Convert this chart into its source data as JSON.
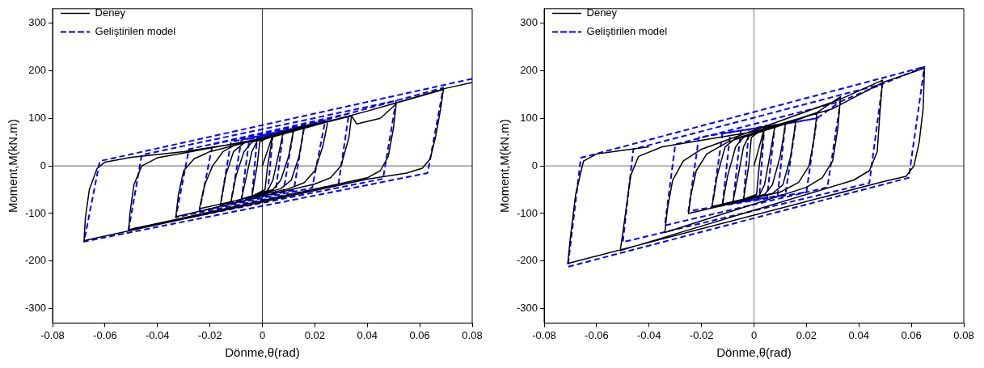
{
  "chart_data": [
    {
      "type": "line",
      "xlabel": "Dönme,θ(rad)",
      "ylabel": "Moment,M(kN.m)",
      "xlim": [
        -0.08,
        0.08
      ],
      "xticks": [
        -0.08,
        -0.06,
        -0.04,
        -0.02,
        0,
        0.02,
        0.04,
        0.06,
        0.08
      ],
      "ylim": [
        -330,
        330
      ],
      "yticks": [
        -300,
        -200,
        -100,
        0,
        100,
        200,
        300
      ],
      "grid": false,
      "legend": "top left",
      "marker": "none",
      "ref_lines": [
        {
          "axis": "x",
          "value": 0,
          "color": "#404040"
        },
        {
          "axis": "y",
          "value": 0,
          "color": "#808080"
        }
      ],
      "series": [
        {
          "name": "Deney",
          "color": "#000000",
          "line_style": "solid",
          "x": [
            0,
            0.004,
            0.002,
            0.001,
            -0.004,
            -0.002,
            -0.001,
            0.004,
            0.008,
            0.006,
            0.004,
            0.002,
            -0.008,
            -0.006,
            -0.004,
            -0.002,
            0.008,
            0.012,
            0.01,
            0.007,
            0.004,
            -0.012,
            -0.01,
            -0.007,
            -0.004,
            0.012,
            0.016,
            0.014,
            0.011,
            0.007,
            -0.016,
            -0.014,
            -0.011,
            -0.007,
            0.016,
            0.025,
            0.023,
            0.02,
            0.016,
            0.01,
            -0.024,
            -0.022,
            -0.019,
            -0.015,
            -0.01,
            0.025,
            0.034,
            0.033,
            0.03,
            0.026,
            0.02,
            -0.033,
            -0.032,
            -0.03,
            -0.026,
            -0.02,
            0.034,
            0.036,
            0.045,
            0.051,
            0.05,
            0.048,
            0.045,
            0.04,
            -0.051,
            -0.0505,
            -0.049,
            -0.046,
            -0.04,
            -0.03,
            0,
            0.04,
            0.069,
            0.068,
            0.066,
            0.064,
            0.061,
            0.055,
            0.04,
            -0.068,
            -0.0675,
            -0.066,
            -0.063,
            -0.06,
            -0.05,
            -0.03,
            0,
            0.04,
            0.07,
            0.08
          ],
          "values": [
            0,
            65,
            0,
            -50,
            -64,
            0,
            50,
            65,
            72,
            20,
            -30,
            -52,
            -70,
            -20,
            30,
            52,
            72,
            78,
            20,
            -30,
            -50,
            -76,
            -20,
            30,
            50,
            78,
            84,
            20,
            -30,
            -48,
            -82,
            -20,
            30,
            48,
            84,
            94,
            40,
            -10,
            -35,
            -48,
            -90,
            -40,
            0,
            30,
            45,
            94,
            105,
            60,
            0,
            -25,
            -38,
            -107,
            -60,
            -10,
            15,
            30,
            105,
            88,
            100,
            130,
            80,
            20,
            -10,
            -25,
            -134,
            -100,
            -40,
            0,
            17,
            27,
            58,
            115,
            160,
            120,
            60,
            15,
            -5,
            -15,
            -28,
            -157,
            -110,
            -50,
            -5,
            8,
            18,
            30,
            55,
            115,
            163,
            175
          ]
        },
        {
          "name": "Geliştirilen model",
          "color": "#0000ff",
          "line_style": "dashed",
          "x": [
            0.004,
            0.002,
            -0.004,
            -0.002,
            0.004,
            0.008,
            0.005,
            -0.008,
            -0.005,
            0.008,
            0.012,
            0.008,
            -0.012,
            -0.008,
            0.012,
            0.016,
            0.012,
            -0.016,
            -0.012,
            0.016,
            0.024,
            0.019,
            -0.024,
            -0.019,
            0.024,
            0.033,
            0.029,
            -0.033,
            -0.028,
            0.033,
            0.051,
            0.046,
            -0.051,
            -0.046,
            0.051,
            0.069,
            0.063,
            -0.068,
            -0.062,
            0.08
          ],
          "values": [
            66,
            -59,
            -66,
            58,
            66,
            72,
            -56,
            -72,
            56,
            72,
            78,
            -54,
            -77,
            54,
            78,
            84,
            -51,
            -83,
            50,
            84,
            96,
            -46,
            -95,
            45,
            96,
            110,
            -39,
            -108,
            35,
            110,
            137,
            -27,
            -134,
            23,
            137,
            164,
            -15,
            -159,
            10,
            183
          ]
        }
      ]
    },
    {
      "type": "line",
      "xlabel": "Dönme,θ(rad)",
      "ylabel": "Moment,M(kN.m)",
      "xlim": [
        -0.08,
        0.08
      ],
      "xticks": [
        -0.08,
        -0.06,
        -0.04,
        -0.02,
        0,
        0.02,
        0.04,
        0.06,
        0.08
      ],
      "ylim": [
        -330,
        330
      ],
      "yticks": [
        -300,
        -200,
        -100,
        0,
        100,
        200,
        300
      ],
      "grid": false,
      "legend": "top left",
      "marker": "none",
      "ref_lines": [
        {
          "axis": "x",
          "value": 0,
          "color": "#909090"
        },
        {
          "axis": "y",
          "value": 0,
          "color": "#909090"
        }
      ],
      "series": [
        {
          "name": "Deney",
          "color": "#000000",
          "line_style": "solid",
          "x": [
            0,
            0.004,
            0.002,
            0.001,
            -0.004,
            -0.002,
            -0.001,
            0.004,
            0.008,
            0.006,
            0.004,
            0.002,
            -0.008,
            -0.006,
            -0.004,
            -0.002,
            0.008,
            0.012,
            0.01,
            0.007,
            0.004,
            -0.012,
            -0.01,
            -0.007,
            -0.004,
            0.012,
            0.016,
            0.014,
            0.011,
            0.007,
            -0.016,
            -0.014,
            -0.011,
            -0.007,
            0.016,
            0.024,
            0.023,
            0.021,
            0.017,
            0.01,
            -0.025,
            -0.024,
            -0.022,
            -0.018,
            -0.01,
            0.024,
            0.033,
            0.032,
            0.03,
            0.026,
            0.02,
            -0.034,
            -0.033,
            -0.031,
            -0.027,
            -0.02,
            0.033,
            0.049,
            0.048,
            0.047,
            0.044,
            0.038,
            -0.051,
            -0.05,
            -0.049,
            -0.047,
            -0.044,
            -0.035,
            0,
            0.03,
            0.049,
            0.065,
            0.0645,
            0.063,
            0.061,
            0.058,
            0.05,
            -0.071,
            -0.07,
            -0.068,
            -0.065,
            -0.06,
            -0.04
          ],
          "values": [
            0,
            80,
            0,
            -60,
            -70,
            0,
            60,
            80,
            85,
            20,
            -40,
            -62,
            -75,
            -20,
            40,
            62,
            85,
            88,
            20,
            -40,
            -60,
            -80,
            -20,
            40,
            60,
            88,
            95,
            20,
            -40,
            -58,
            -85,
            -20,
            40,
            58,
            95,
            112,
            60,
            0,
            -35,
            -55,
            -100,
            -60,
            -10,
            25,
            50,
            112,
            145,
            80,
            10,
            -25,
            -45,
            -140,
            -90,
            -30,
            10,
            35,
            140,
            180,
            110,
            30,
            -10,
            -30,
            -178,
            -140,
            -100,
            -20,
            20,
            40,
            72,
            120,
            175,
            205,
            120,
            50,
            0,
            -22,
            -32,
            -205,
            -150,
            -60,
            10,
            25,
            40
          ]
        },
        {
          "name": "Geliştirilen model",
          "color": "#0000ff",
          "line_style": "dashed",
          "x": [
            0.004,
            0.002,
            -0.004,
            -0.002,
            0.004,
            0.008,
            0.005,
            -0.008,
            -0.005,
            0.008,
            0.012,
            0.009,
            -0.012,
            -0.009,
            0.012,
            0.016,
            0.012,
            -0.016,
            -0.012,
            0.016,
            0.024,
            0.02,
            -0.025,
            -0.021,
            0.024,
            0.033,
            0.028,
            -0.034,
            -0.03,
            0.033,
            0.049,
            0.044,
            -0.05,
            -0.046,
            0.049,
            0.065,
            0.059,
            -0.071,
            -0.066,
            0.065
          ],
          "values": [
            84,
            -68,
            -76,
            76,
            84,
            86,
            -66,
            -78,
            74,
            86,
            89,
            -63,
            -82,
            71,
            89,
            92,
            -60,
            -86,
            68,
            92,
            100,
            -55,
            -95,
            60,
            100,
            135,
            -45,
            -125,
            45,
            135,
            172,
            -36,
            -160,
            35,
            172,
            208,
            -25,
            -212,
            17,
            208
          ]
        }
      ]
    }
  ]
}
